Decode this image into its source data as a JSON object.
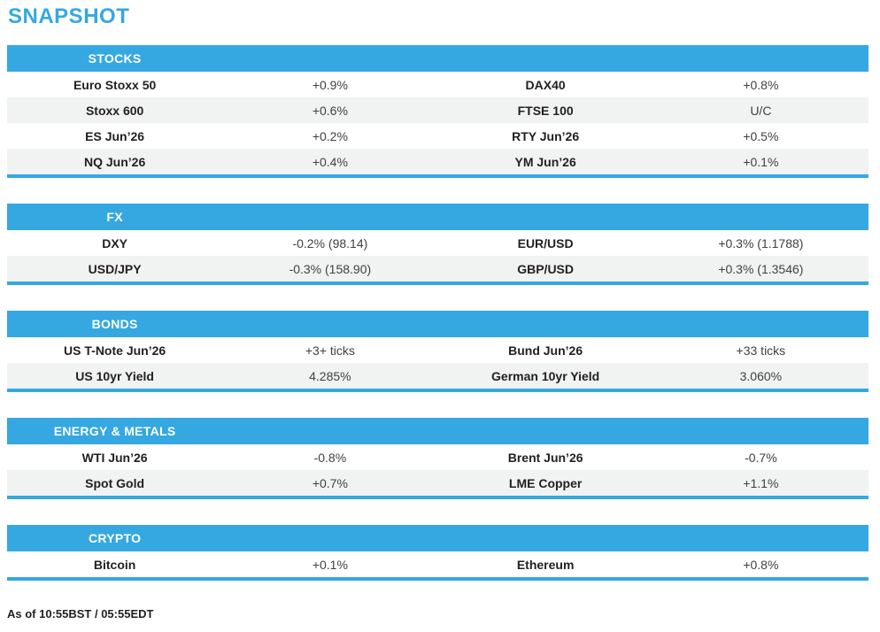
{
  "title": "SNAPSHOT",
  "colors": {
    "accent": "#35a8e1",
    "row_alternate": "#f1f2f2",
    "label_text": "#231f20",
    "value_text": "#414042"
  },
  "footer": {
    "as_of": "As of 10:55BST / 05:55EDT"
  },
  "sections": [
    {
      "label": "STOCKS",
      "rows": [
        [
          {
            "label": "Euro Stoxx 50",
            "value": "+0.9%"
          },
          {
            "label": "DAX40",
            "value": "+0.8%"
          }
        ],
        [
          {
            "label": "Stoxx 600",
            "value": "+0.6%"
          },
          {
            "label": "FTSE 100",
            "value": "U/C"
          }
        ],
        [
          {
            "label": "ES Jun’26",
            "value": "+0.2%"
          },
          {
            "label": "RTY Jun’26",
            "value": "+0.5%"
          }
        ],
        [
          {
            "label": "NQ Jun’26",
            "value": "+0.4%"
          },
          {
            "label": "YM Jun’26",
            "value": "+0.1%"
          }
        ]
      ]
    },
    {
      "label": "FX",
      "rows": [
        [
          {
            "label": "DXY",
            "value": "-0.2% (98.14)"
          },
          {
            "label": "EUR/USD",
            "value": "+0.3% (1.1788)"
          }
        ],
        [
          {
            "label": "USD/JPY",
            "value": "-0.3% (158.90)"
          },
          {
            "label": "GBP/USD",
            "value": "+0.3% (1.3546)"
          }
        ]
      ]
    },
    {
      "label": "BONDS",
      "rows": [
        [
          {
            "label": "US T-Note Jun’26",
            "value": "+3+ ticks"
          },
          {
            "label": "Bund Jun’26",
            "value": "+33 ticks"
          }
        ],
        [
          {
            "label": "US 10yr Yield",
            "value": "4.285%"
          },
          {
            "label": "German 10yr Yield",
            "value": "3.060%"
          }
        ]
      ]
    },
    {
      "label": "ENERGY & METALS",
      "rows": [
        [
          {
            "label": "WTI Jun’26",
            "value": "-0.8%"
          },
          {
            "label": "Brent Jun’26",
            "value": "-0.7%"
          }
        ],
        [
          {
            "label": "Spot Gold",
            "value": "+0.7%"
          },
          {
            "label": "LME Copper",
            "value": "+1.1%"
          }
        ]
      ]
    },
    {
      "label": "CRYPTO",
      "rows": [
        [
          {
            "label": "Bitcoin",
            "value": "+0.1%"
          },
          {
            "label": "Ethereum",
            "value": "+0.8%"
          }
        ]
      ]
    }
  ]
}
